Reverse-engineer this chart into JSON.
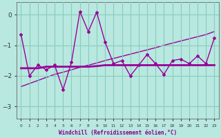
{
  "xlabel": "Windchill (Refroidissement éolien,°C)",
  "background_color": "#b8e8e0",
  "grid_color": "#88ccbb",
  "line_color": "#990099",
  "x": [
    0,
    1,
    2,
    3,
    4,
    5,
    6,
    7,
    8,
    9,
    10,
    11,
    12,
    13,
    14,
    15,
    16,
    17,
    18,
    19,
    20,
    21,
    22,
    23
  ],
  "y_main": [
    -0.65,
    -2.0,
    -1.65,
    -1.8,
    -1.65,
    -2.45,
    -1.55,
    0.1,
    -0.55,
    0.08,
    -0.9,
    -1.6,
    -1.5,
    -2.0,
    -1.65,
    -1.3,
    -1.6,
    -1.95,
    -1.5,
    -1.45,
    -1.6,
    -1.35,
    -1.6,
    -0.75
  ],
  "y_mean": [
    -1.75,
    -1.75,
    -1.75,
    -1.7,
    -1.7,
    -1.7,
    -1.7,
    -1.7,
    -1.7,
    -1.68,
    -1.65,
    -1.65,
    -1.65,
    -1.65,
    -1.65,
    -1.65,
    -1.65,
    -1.65,
    -1.65,
    -1.65,
    -1.65,
    -1.65,
    -1.65,
    -1.65
  ],
  "y_trend": [
    -2.35,
    -2.25,
    -2.15,
    -2.05,
    -1.95,
    -1.88,
    -1.8,
    -1.72,
    -1.65,
    -1.58,
    -1.5,
    -1.43,
    -1.36,
    -1.29,
    -1.22,
    -1.15,
    -1.08,
    -1.0,
    -0.93,
    -0.86,
    -0.79,
    -0.72,
    -0.65,
    -0.55
  ],
  "ylim": [
    -3.4,
    0.4
  ],
  "yticks": [
    0,
    -1,
    -2,
    -3
  ],
  "xlim": [
    -0.5,
    23.5
  ]
}
